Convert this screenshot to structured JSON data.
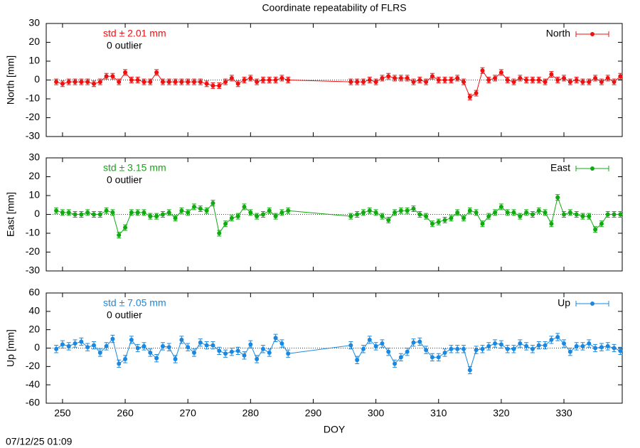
{
  "title": "Coordinate repeatability of FLRS",
  "timestamp": "07/12/25 01:09",
  "chart_data": [
    {
      "type": "line",
      "ylabel": "North [mm]",
      "annotation": "std ± 2.01 mm",
      "note": "0 outlier",
      "x": [
        249,
        250,
        251,
        252,
        253,
        254,
        255,
        256,
        257,
        258,
        259,
        260,
        261,
        262,
        263,
        264,
        265,
        266,
        267,
        268,
        269,
        270,
        271,
        272,
        273,
        274,
        275,
        276,
        277,
        278,
        279,
        280,
        281,
        282,
        283,
        284,
        285,
        286,
        296,
        297,
        298,
        299,
        300,
        301,
        302,
        303,
        304,
        305,
        306,
        307,
        308,
        309,
        310,
        311,
        312,
        313,
        314,
        315,
        316,
        317,
        318,
        319,
        320,
        321,
        322,
        323,
        324,
        325,
        326,
        327,
        328,
        329,
        330,
        331,
        332,
        333,
        334,
        335,
        336,
        337,
        338,
        339
      ],
      "series": [
        {
          "name": "North",
          "color": "#ee1111",
          "error": 1.5,
          "values": [
            -1,
            -2,
            -1,
            -1,
            -1,
            -1,
            -2,
            -1,
            2,
            2,
            -1,
            4,
            0,
            0,
            -1,
            -1,
            4,
            -1,
            -1,
            -1,
            -1,
            -1,
            -1,
            -1,
            -2,
            -3,
            -3,
            -1,
            1,
            -2,
            0,
            1,
            -1,
            0,
            0,
            0,
            1,
            0,
            -1,
            -1,
            -1,
            0,
            -1,
            1,
            2,
            1,
            1,
            1,
            -1,
            0,
            -1,
            2,
            0,
            0,
            0,
            1,
            -1,
            -9,
            -7,
            5,
            0,
            1,
            4,
            0,
            -1,
            1,
            0,
            0,
            0,
            -1,
            3,
            0,
            1,
            -1,
            0,
            -1,
            -1,
            1,
            -1,
            1,
            -1,
            2
          ]
        }
      ],
      "xlim": [
        247.4,
        339.3
      ],
      "xticks": [
        250,
        260,
        270,
        280,
        290,
        300,
        310,
        320,
        330
      ],
      "ylim": [
        -30,
        30
      ],
      "yticks": [
        -30,
        -20,
        -10,
        0,
        10,
        20,
        30
      ]
    },
    {
      "type": "line",
      "ylabel": "East [mm]",
      "annotation": "std ± 3.15 mm",
      "note": "0 outlier",
      "x": [
        249,
        250,
        251,
        252,
        253,
        254,
        255,
        256,
        257,
        258,
        259,
        260,
        261,
        262,
        263,
        264,
        265,
        266,
        267,
        268,
        269,
        270,
        271,
        272,
        273,
        274,
        275,
        276,
        277,
        278,
        279,
        280,
        281,
        282,
        283,
        284,
        285,
        286,
        296,
        297,
        298,
        299,
        300,
        301,
        302,
        303,
        304,
        305,
        306,
        307,
        308,
        309,
        310,
        311,
        312,
        313,
        314,
        315,
        316,
        317,
        318,
        319,
        320,
        321,
        322,
        323,
        324,
        325,
        326,
        327,
        328,
        329,
        330,
        331,
        332,
        333,
        334,
        335,
        336,
        337,
        338,
        339
      ],
      "series": [
        {
          "name": "East",
          "color": "#11aa11",
          "error": 1.5,
          "values": [
            2,
            1,
            1,
            0,
            0,
            1,
            0,
            0,
            2,
            1,
            -11,
            -7,
            1,
            1,
            1,
            -1,
            -1,
            0,
            1,
            -2,
            2,
            1,
            4,
            3,
            2,
            6,
            -10,
            -5,
            -2,
            -1,
            4,
            1,
            -1,
            0,
            2,
            -1,
            1,
            2,
            -1,
            0,
            1,
            2,
            1,
            -1,
            -3,
            1,
            2,
            2,
            3,
            0,
            -1,
            -5,
            -4,
            -3,
            -2,
            1,
            -2,
            2,
            1,
            -5,
            -1,
            1,
            4,
            1,
            1,
            -1,
            1,
            0,
            2,
            1,
            -5,
            9,
            0,
            1,
            0,
            -1,
            -1,
            -8,
            -5,
            0,
            0,
            0
          ]
        }
      ],
      "xlim": [
        247.4,
        339.3
      ],
      "xticks": [
        250,
        260,
        270,
        280,
        290,
        300,
        310,
        320,
        330
      ],
      "ylim": [
        -30,
        30
      ],
      "yticks": [
        -30,
        -20,
        -10,
        0,
        10,
        20,
        30
      ]
    },
    {
      "type": "line",
      "ylabel": "Up [mm]",
      "annotation": "std ± 7.05 mm",
      "note": "0 outlier",
      "xlabel": "DOY",
      "x": [
        249,
        250,
        251,
        252,
        253,
        254,
        255,
        256,
        257,
        258,
        259,
        260,
        261,
        262,
        263,
        264,
        265,
        266,
        267,
        268,
        269,
        270,
        271,
        272,
        273,
        274,
        275,
        276,
        277,
        278,
        279,
        280,
        281,
        282,
        283,
        284,
        285,
        286,
        296,
        297,
        298,
        299,
        300,
        301,
        302,
        303,
        304,
        305,
        306,
        307,
        308,
        309,
        310,
        311,
        312,
        313,
        314,
        315,
        316,
        317,
        318,
        319,
        320,
        321,
        322,
        323,
        324,
        325,
        326,
        327,
        328,
        329,
        330,
        331,
        332,
        333,
        334,
        335,
        336,
        337,
        338,
        339
      ],
      "series": [
        {
          "name": "Up",
          "color": "#1a88e0",
          "error": 4,
          "values": [
            -1,
            4,
            2,
            5,
            7,
            1,
            3,
            -5,
            2,
            10,
            -17,
            -12,
            9,
            0,
            2,
            -5,
            -11,
            2,
            1,
            -12,
            9,
            1,
            -5,
            6,
            3,
            3,
            -3,
            -6,
            -4,
            -3,
            -8,
            4,
            -12,
            -1,
            -5,
            11,
            5,
            -6,
            3,
            -13,
            -1,
            9,
            2,
            5,
            -4,
            -17,
            -10,
            -4,
            6,
            7,
            -2,
            -10,
            -10,
            -5,
            -1,
            -1,
            -1,
            -24,
            -2,
            -1,
            2,
            5,
            4,
            -1,
            -1,
            5,
            2,
            -1,
            3,
            3,
            9,
            12,
            5,
            -4,
            2,
            2,
            5,
            0,
            1,
            2,
            0,
            -3
          ]
        }
      ],
      "xlim": [
        247.4,
        339.3
      ],
      "xticks": [
        250,
        260,
        270,
        280,
        290,
        300,
        310,
        320,
        330
      ],
      "ylim": [
        -60,
        60
      ],
      "yticks": [
        -60,
        -40,
        -20,
        0,
        20,
        40,
        60
      ]
    }
  ]
}
